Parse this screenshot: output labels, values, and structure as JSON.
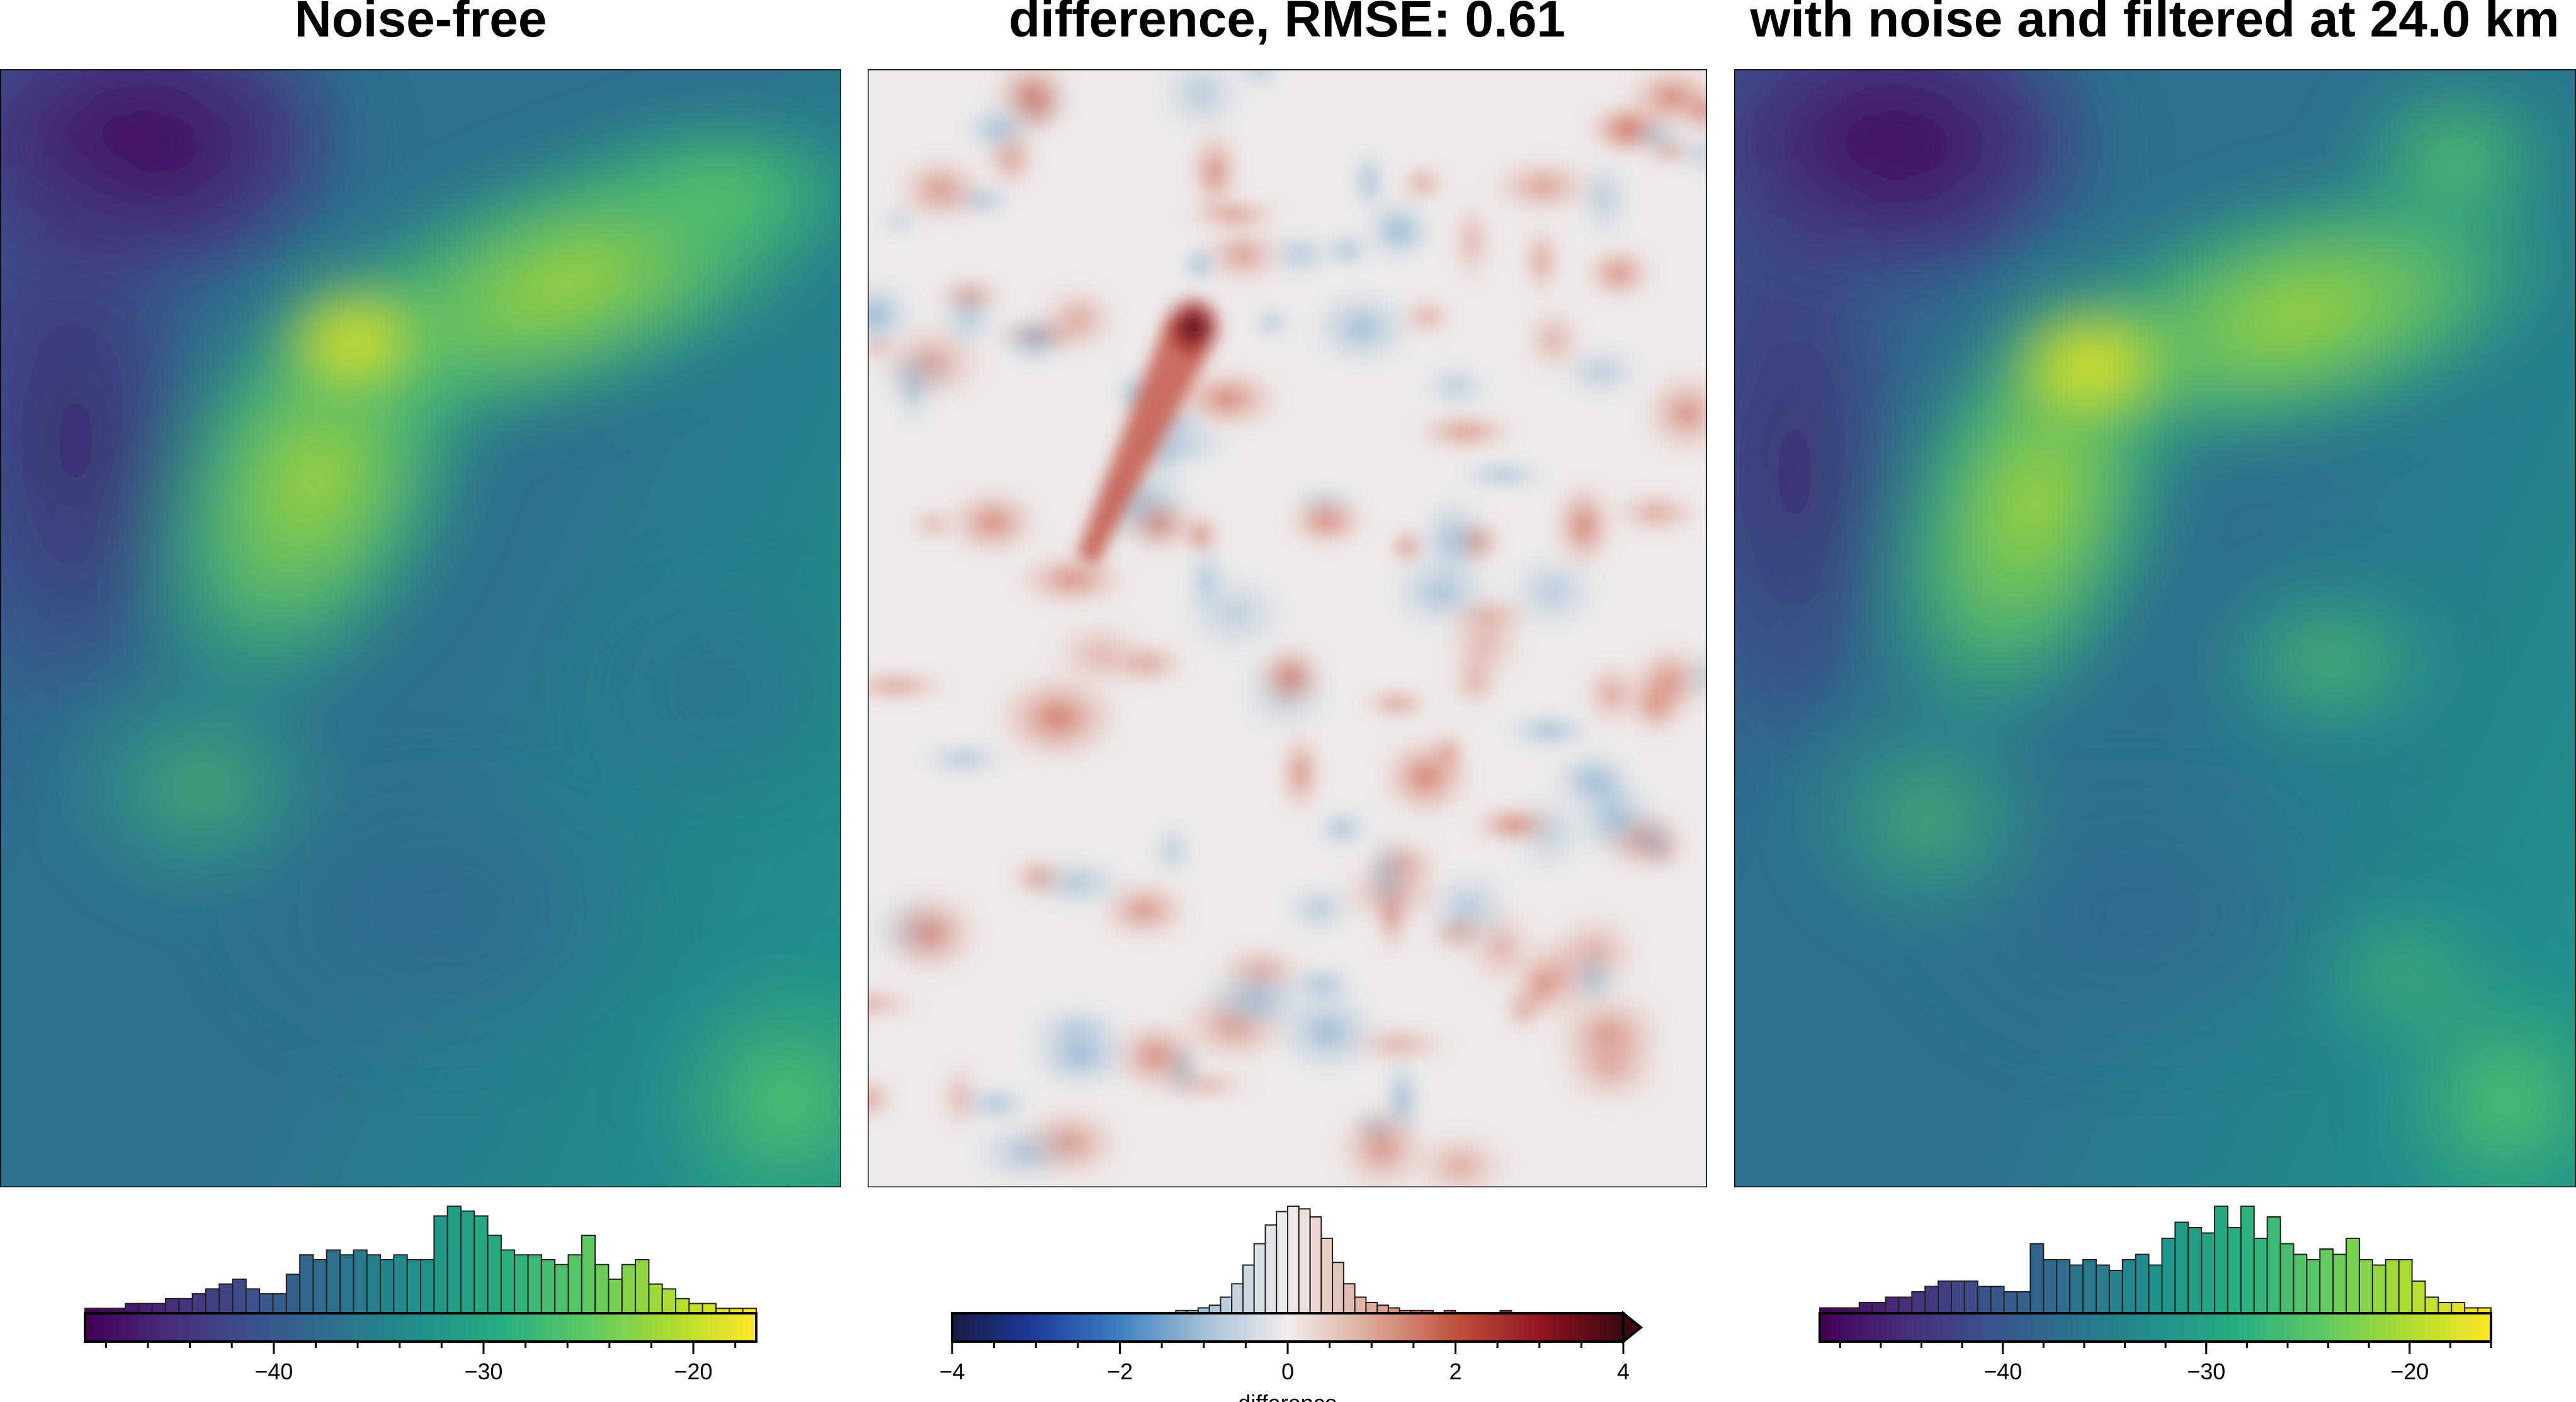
{
  "chart_data": [
    {
      "type": "heatmap",
      "title": "Noise-free",
      "colormap": "viridis",
      "colorbar": {
        "range": [
          -49,
          -17
        ],
        "ticks": [
          -40,
          -30,
          -20
        ],
        "tick_labels": [
          "−40",
          "−30",
          "−20"
        ],
        "label": "",
        "histogram": [
          1,
          1,
          1,
          2,
          2,
          2,
          3,
          3,
          4,
          5,
          6,
          7,
          5,
          4,
          4,
          8,
          12,
          11,
          13,
          12,
          13,
          12,
          11,
          12,
          11,
          11,
          20,
          22,
          21,
          20,
          16,
          13,
          12,
          12,
          11,
          10,
          12,
          16,
          10,
          7,
          10,
          11,
          6,
          5,
          3,
          2,
          2,
          1,
          1,
          1
        ]
      }
    },
    {
      "type": "heatmap",
      "title": "difference, RMSE: 0.61",
      "colormap": "diverging blue-white-red",
      "colorbar": {
        "range": [
          -4,
          4
        ],
        "ticks": [
          -4,
          -2,
          0,
          2,
          4
        ],
        "tick_labels": [
          "−4",
          "−2",
          "0",
          "2",
          "4"
        ],
        "label": "difference",
        "extend": "max",
        "histogram": [
          0,
          0,
          0,
          0,
          0,
          0,
          0,
          0,
          0,
          0,
          0,
          0,
          0,
          0,
          0,
          0,
          0,
          0,
          0,
          0,
          1,
          1,
          2,
          3,
          6,
          11,
          18,
          26,
          33,
          38,
          40,
          39,
          36,
          28,
          19,
          11,
          6,
          4,
          3,
          2,
          1,
          1,
          1,
          0,
          1,
          0,
          0,
          0,
          0,
          1,
          0,
          0,
          0,
          0,
          0,
          0,
          0,
          0,
          0,
          0
        ]
      }
    },
    {
      "type": "heatmap",
      "title": "with noise and filtered at 24.0 km",
      "colormap": "viridis",
      "colorbar": {
        "range": [
          -49,
          -16
        ],
        "ticks": [
          -40,
          -30,
          -20
        ],
        "tick_labels": [
          "−40",
          "−30",
          "−20"
        ],
        "label": "",
        "histogram": [
          1,
          1,
          1,
          2,
          2,
          3,
          3,
          4,
          5,
          6,
          6,
          6,
          5,
          5,
          4,
          4,
          13,
          10,
          10,
          9,
          10,
          9,
          8,
          10,
          11,
          9,
          14,
          17,
          16,
          15,
          20,
          16,
          20,
          14,
          18,
          13,
          11,
          10,
          12,
          11,
          14,
          10,
          9,
          10,
          10,
          6,
          3,
          2,
          2,
          1,
          1
        ]
      }
    }
  ]
}
